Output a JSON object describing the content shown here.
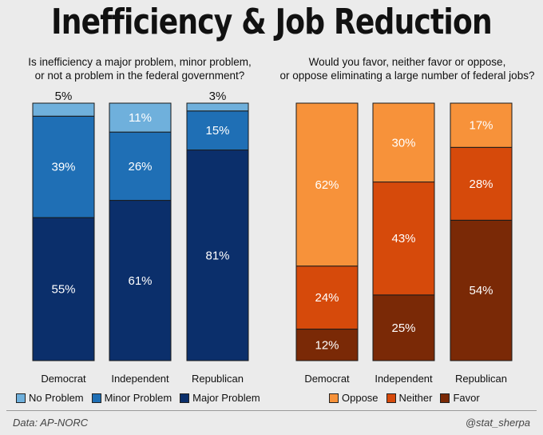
{
  "title": "Inefficiency & Job Reduction",
  "chart_data": [
    {
      "type": "bar",
      "stacked": true,
      "title": "Is inefficiency a major problem, minor problem, or not a problem in the federal government?",
      "title_lines": [
        "Is inefficiency a major problem, minor problem,",
        "or not a problem in the federal government?"
      ],
      "categories": [
        "Democrat",
        "Independent",
        "Republican"
      ],
      "series": [
        {
          "name": "Major Problem",
          "color": "#0b2f6b",
          "values": [
            55,
            61,
            81
          ]
        },
        {
          "name": "Minor Problem",
          "color": "#1f6fb5",
          "values": [
            39,
            26,
            15
          ]
        },
        {
          "name": "No Problem",
          "color": "#6fb0dc",
          "values": [
            5,
            11,
            3
          ]
        }
      ],
      "legend_order": [
        "No Problem",
        "Minor Problem",
        "Major Problem"
      ],
      "ylim": [
        0,
        100
      ]
    },
    {
      "type": "bar",
      "stacked": true,
      "title": "Would you favor, neither favor or oppose, or oppose eliminating a large number of federal jobs?",
      "title_lines": [
        "Would you favor, neither favor or oppose,",
        "or oppose eliminating a large number of federal jobs?"
      ],
      "categories": [
        "Democrat",
        "Independent",
        "Republican"
      ],
      "series": [
        {
          "name": "Favor",
          "color": "#7a2906",
          "values": [
            12,
            25,
            54
          ]
        },
        {
          "name": "Neither",
          "color": "#d64a0b",
          "values": [
            24,
            43,
            28
          ]
        },
        {
          "name": "Oppose",
          "color": "#f7923a",
          "values": [
            62,
            30,
            17
          ]
        }
      ],
      "legend_order": [
        "Oppose",
        "Neither",
        "Favor"
      ],
      "ylim": [
        0,
        100
      ]
    }
  ],
  "footer": {
    "source": "Data: AP-NORC",
    "handle": "@stat_sherpa"
  }
}
